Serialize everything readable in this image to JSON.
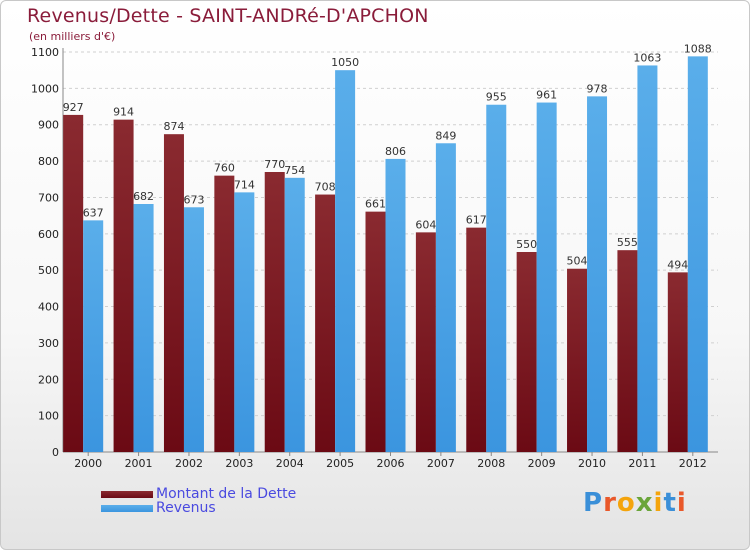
{
  "header": {
    "title": "Revenus/Dette - SAINT-ANDRé-D'APCHON",
    "subtitle": "(en milliers d'€)"
  },
  "colors": {
    "dette": "#6b0a14",
    "dette_light": "#8a2a30",
    "revenus": "#3b95df",
    "revenus_light": "#5aaeea",
    "grid": "#d0d0d0",
    "axis_text": "#222222",
    "value_text": "#333333"
  },
  "logo": {
    "letters": [
      "P",
      "r",
      "o",
      "x",
      "i",
      "t",
      "i"
    ],
    "colors": [
      "#3a8fd8",
      "#e9582a",
      "#f4a40c",
      "#6aa53a",
      "#f4a40c",
      "#3a8fd8",
      "#e9582a"
    ]
  },
  "chart_data": {
    "type": "bar",
    "categories": [
      "2000",
      "2001",
      "2002",
      "2003",
      "2004",
      "2005",
      "2006",
      "2007",
      "2008",
      "2009",
      "2010",
      "2011",
      "2012"
    ],
    "series": [
      {
        "name": "Montant de la Dette",
        "values": [
          927,
          914,
          874,
          760,
          770,
          708,
          661,
          604,
          617,
          550,
          504,
          555,
          494
        ]
      },
      {
        "name": "Revenus",
        "values": [
          637,
          682,
          673,
          714,
          754,
          1050,
          806,
          849,
          955,
          961,
          978,
          1063,
          1088
        ]
      }
    ],
    "y_ticks": [
      "0",
      "100",
      "200",
      "300",
      "400",
      "500",
      "600",
      "700",
      "800",
      "900",
      "1000",
      "1100"
    ],
    "ylim": [
      0,
      1100
    ],
    "grid": true,
    "legend_position": "bottom-left"
  }
}
